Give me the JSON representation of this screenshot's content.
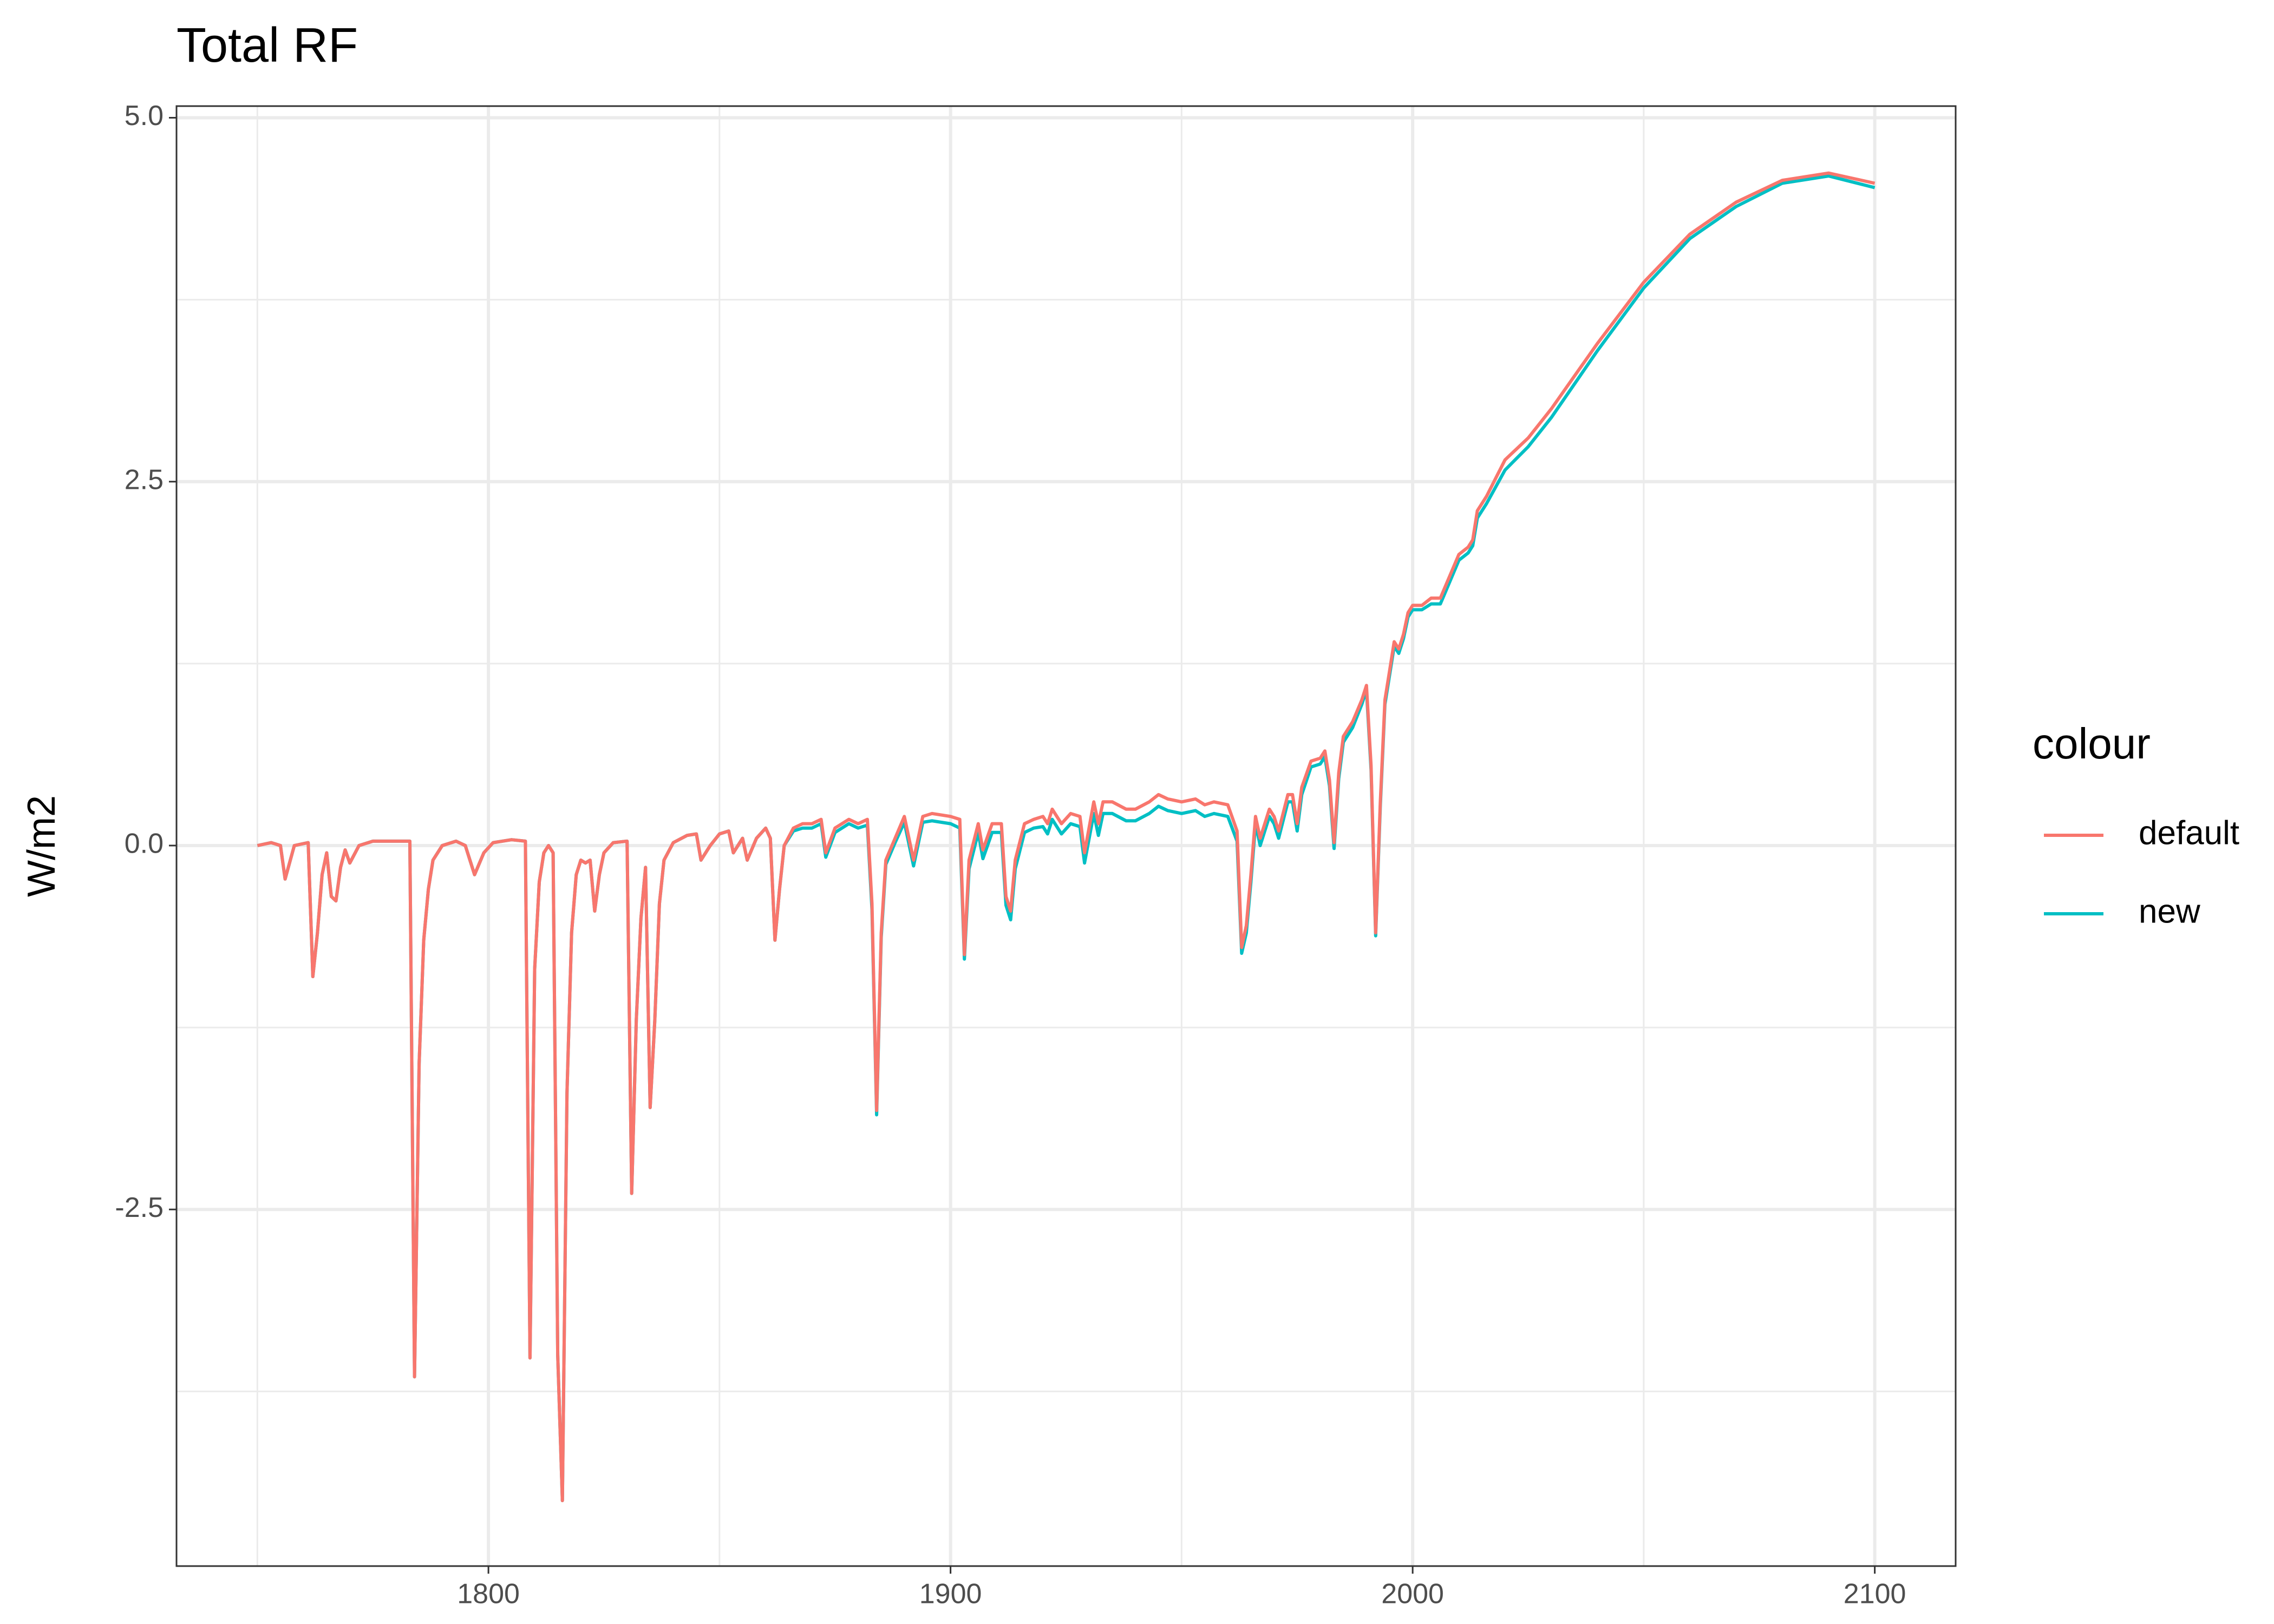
{
  "chart_data": {
    "type": "line",
    "title": "Total RF",
    "y_label": "W/m2",
    "legend_title": "colour",
    "x": [
      1750,
      1753,
      1755,
      1756,
      1758,
      1761,
      1762,
      1763,
      1764,
      1765,
      1766,
      1767,
      1768,
      1769,
      1770,
      1772,
      1775,
      1780,
      1783,
      1784,
      1785,
      1786,
      1787,
      1788,
      1790,
      1793,
      1795,
      1797,
      1799,
      1801,
      1805,
      1808,
      1809,
      1810,
      1811,
      1812,
      1813,
      1814,
      1815,
      1816,
      1817,
      1818,
      1819,
      1820,
      1821,
      1822,
      1823,
      1824,
      1825,
      1827,
      1830,
      1831,
      1832,
      1833,
      1834,
      1835,
      1836,
      1837,
      1838,
      1840,
      1843,
      1845,
      1846,
      1848,
      1850,
      1852,
      1853,
      1855,
      1856,
      1858,
      1860,
      1861,
      1862,
      1863,
      1864,
      1866,
      1868,
      1870,
      1872,
      1873,
      1875,
      1878,
      1880,
      1882,
      1883,
      1884,
      1885,
      1886,
      1888,
      1890,
      1891,
      1892,
      1894,
      1896,
      1900,
      1902,
      1903,
      1904,
      1906,
      1907,
      1909,
      1911,
      1912,
      1913,
      1914,
      1916,
      1918,
      1920,
      1921,
      1922,
      1924,
      1926,
      1928,
      1929,
      1931,
      1932,
      1933,
      1935,
      1938,
      1940,
      1943,
      1945,
      1947,
      1950,
      1953,
      1955,
      1957,
      1960,
      1962,
      1963,
      1964,
      1965,
      1966,
      1967,
      1969,
      1970,
      1971,
      1973,
      1974,
      1975,
      1976,
      1978,
      1980,
      1981,
      1982,
      1983,
      1984,
      1985,
      1987,
      1989,
      1990,
      1991,
      1992,
      1993,
      1994,
      1995,
      1996,
      1997,
      1998,
      1999,
      2000,
      2002,
      2004,
      2006,
      2008,
      2010,
      2012,
      2013,
      2014,
      2016,
      2020,
      2025,
      2030,
      2040,
      2050,
      2060,
      2070,
      2080,
      2090,
      2100
    ],
    "series": [
      {
        "name": "new",
        "color": "#00BFC4",
        "values": [
          0,
          0.02,
          0,
          -0.23,
          0,
          0.02,
          -0.9,
          -0.6,
          -0.2,
          -0.05,
          -0.35,
          -0.38,
          -0.15,
          -0.03,
          -0.12,
          0,
          0.03,
          0.03,
          0.03,
          -3.65,
          -1.5,
          -0.65,
          -0.3,
          -0.1,
          0,
          0.03,
          0,
          -0.2,
          -0.05,
          0.02,
          0.04,
          0.03,
          -3.52,
          -0.85,
          -0.25,
          -0.05,
          0,
          -0.05,
          -3.5,
          -4.5,
          -1.7,
          -0.6,
          -0.2,
          -0.1,
          -0.12,
          -0.1,
          -0.45,
          -0.2,
          -0.05,
          0.02,
          0.03,
          -2.39,
          -1.2,
          -0.5,
          -0.15,
          -1.8,
          -1.2,
          -0.4,
          -0.1,
          0.02,
          0.07,
          0.08,
          -0.1,
          0,
          0.08,
          0.1,
          -0.05,
          0.05,
          -0.1,
          0.05,
          0.12,
          0.05,
          -0.65,
          -0.3,
          0,
          0.1,
          0.12,
          0.12,
          0.15,
          -0.08,
          0.09,
          0.15,
          0.12,
          0.14,
          -0.44,
          -1.85,
          -0.63,
          -0.13,
          0.02,
          0.16,
          0.01,
          -0.14,
          0.16,
          0.17,
          0.15,
          0.12,
          -0.78,
          -0.16,
          0.09,
          -0.09,
          0.09,
          0.09,
          -0.41,
          -0.51,
          -0.16,
          0.09,
          0.12,
          0.13,
          0.08,
          0.18,
          0.08,
          0.15,
          0.13,
          -0.12,
          0.22,
          0.07,
          0.22,
          0.22,
          0.17,
          0.17,
          0.22,
          0.27,
          0.24,
          0.22,
          0.24,
          0.2,
          0.22,
          0.2,
          0.03,
          -0.74,
          -0.6,
          -0.25,
          0.15,
          0,
          0.2,
          0.15,
          0.05,
          0.3,
          0.3,
          0.1,
          0.35,
          0.54,
          0.56,
          0.61,
          0.41,
          -0.02,
          0.46,
          0.71,
          0.81,
          0.97,
          1.07,
          0.52,
          -0.62,
          0.27,
          0.97,
          1.17,
          1.37,
          1.32,
          1.42,
          1.57,
          1.62,
          1.62,
          1.66,
          1.66,
          1.81,
          1.96,
          2.01,
          2.06,
          2.25,
          2.35,
          2.58,
          2.74,
          2.94,
          3.4,
          3.83,
          4.17,
          4.39,
          4.55,
          4.6,
          4.52
        ]
      },
      {
        "name": "default",
        "color": "#F8766D",
        "values": [
          0,
          0.02,
          0,
          -0.23,
          0,
          0.02,
          -0.9,
          -0.6,
          -0.2,
          -0.05,
          -0.35,
          -0.38,
          -0.15,
          -0.03,
          -0.12,
          0,
          0.03,
          0.03,
          0.03,
          -3.65,
          -1.5,
          -0.65,
          -0.3,
          -0.1,
          0,
          0.03,
          0,
          -0.2,
          -0.05,
          0.02,
          0.04,
          0.03,
          -3.52,
          -0.85,
          -0.25,
          -0.05,
          0,
          -0.05,
          -3.5,
          -4.5,
          -1.7,
          -0.6,
          -0.2,
          -0.1,
          -0.12,
          -0.1,
          -0.45,
          -0.2,
          -0.05,
          0.02,
          0.03,
          -2.39,
          -1.2,
          -0.5,
          -0.15,
          -1.8,
          -1.2,
          -0.4,
          -0.1,
          0.02,
          0.07,
          0.08,
          -0.1,
          0,
          0.08,
          0.1,
          -0.05,
          0.05,
          -0.1,
          0.05,
          0.12,
          0.05,
          -0.65,
          -0.3,
          0,
          0.12,
          0.15,
          0.15,
          0.18,
          -0.05,
          0.12,
          0.18,
          0.15,
          0.18,
          -0.4,
          -1.82,
          -0.6,
          -0.1,
          0.05,
          0.2,
          0.05,
          -0.1,
          0.2,
          0.22,
          0.2,
          0.18,
          -0.75,
          -0.1,
          0.15,
          -0.03,
          0.15,
          0.15,
          -0.35,
          -0.45,
          -0.1,
          0.15,
          0.18,
          0.2,
          0.15,
          0.25,
          0.15,
          0.22,
          0.2,
          -0.05,
          0.3,
          0.15,
          0.3,
          0.3,
          0.25,
          0.25,
          0.3,
          0.35,
          0.32,
          0.3,
          0.32,
          0.28,
          0.3,
          0.28,
          0.1,
          -0.7,
          -0.55,
          -0.2,
          0.2,
          0.05,
          0.25,
          0.2,
          0.1,
          0.35,
          0.35,
          0.15,
          0.4,
          0.58,
          0.6,
          0.65,
          0.45,
          0.02,
          0.5,
          0.75,
          0.85,
          1.0,
          1.1,
          0.55,
          -0.6,
          0.3,
          1.0,
          1.2,
          1.4,
          1.35,
          1.45,
          1.6,
          1.65,
          1.65,
          1.7,
          1.7,
          1.85,
          2.0,
          2.05,
          2.1,
          2.3,
          2.4,
          2.65,
          2.8,
          3.0,
          3.45,
          3.87,
          4.2,
          4.42,
          4.57,
          4.62,
          4.55
        ]
      }
    ],
    "legend_order": [
      1,
      0
    ],
    "xlim": [
      1732.5,
      2117.5
    ],
    "xticks": [
      1800,
      1900,
      2000,
      2100
    ],
    "x_minor_grid": [
      1750,
      1850,
      1950,
      2050
    ],
    "ylim": [
      -4.95,
      5.08
    ],
    "yticks": [
      {
        "value": -2.5,
        "label": "-2.5"
      },
      {
        "value": 0,
        "label": "0.0"
      },
      {
        "value": 2.5,
        "label": "2.5"
      },
      {
        "value": 5,
        "label": "5.0"
      }
    ],
    "y_minor_grid": [
      -3.75,
      -1.25,
      1.25,
      3.75
    ],
    "grid": true
  }
}
